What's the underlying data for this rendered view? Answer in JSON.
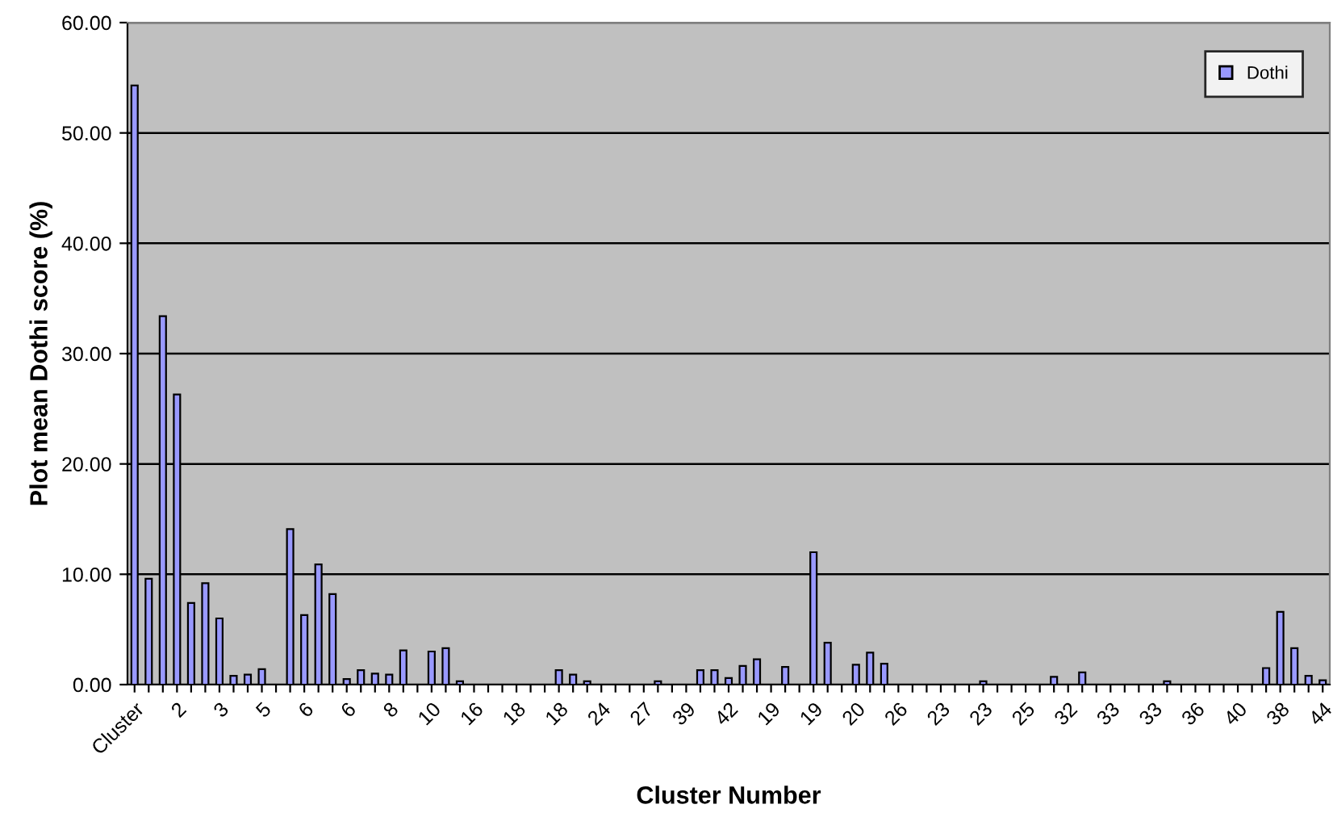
{
  "chart_data": {
    "type": "bar",
    "xlabel": "Cluster Number",
    "ylabel": "Plot mean Dothi score (%)",
    "categories": [
      "Cluster",
      null,
      null,
      "2",
      null,
      null,
      "3",
      null,
      null,
      "5",
      null,
      null,
      "6",
      null,
      null,
      "6",
      null,
      null,
      "8",
      null,
      null,
      "10",
      null,
      null,
      "16",
      null,
      null,
      "18",
      null,
      null,
      "18",
      null,
      null,
      "24",
      null,
      null,
      "27",
      null,
      null,
      "39",
      null,
      null,
      "42",
      null,
      null,
      "19",
      null,
      null,
      "19",
      null,
      null,
      "20",
      null,
      null,
      "26",
      null,
      null,
      "23",
      null,
      null,
      "23",
      null,
      null,
      "25",
      null,
      null,
      "32",
      null,
      null,
      "33",
      null,
      null,
      "33",
      null,
      null,
      "36",
      null,
      null,
      "40",
      null,
      null,
      "38",
      null,
      null,
      "44"
    ],
    "series": [
      {
        "name": "Dothi",
        "color": "#9999ff",
        "values": [
          54.3,
          9.6,
          33.4,
          26.3,
          7.4,
          9.2,
          6.0,
          0.8,
          0.9,
          1.4,
          null,
          14.1,
          6.3,
          10.9,
          8.2,
          0.5,
          1.3,
          1.0,
          0.9,
          3.1,
          null,
          3.0,
          3.3,
          0.3,
          null,
          null,
          null,
          null,
          null,
          null,
          1.3,
          0.9,
          0.3,
          null,
          null,
          null,
          null,
          0.3,
          null,
          null,
          1.3,
          1.3,
          0.6,
          1.7,
          2.3,
          null,
          1.6,
          null,
          12.0,
          3.8,
          null,
          1.8,
          2.9,
          1.9,
          null,
          null,
          null,
          null,
          null,
          null,
          0.3,
          null,
          null,
          null,
          null,
          0.7,
          null,
          1.1,
          null,
          null,
          null,
          null,
          null,
          0.3,
          null,
          null,
          null,
          null,
          null,
          null,
          1.5,
          6.6,
          3.3,
          0.8,
          0.4
        ]
      }
    ],
    "ylim": [
      0,
      60
    ],
    "yticks": [
      {
        "value": 0,
        "label": "0.00"
      },
      {
        "value": 10,
        "label": "10.00"
      },
      {
        "value": 20,
        "label": "20.00"
      },
      {
        "value": 30,
        "label": "30.00"
      },
      {
        "value": 40,
        "label": "40.00"
      },
      {
        "value": 50,
        "label": "50.00"
      },
      {
        "value": 60,
        "label": "60.00"
      }
    ],
    "grid": "y",
    "legend": "top right"
  }
}
